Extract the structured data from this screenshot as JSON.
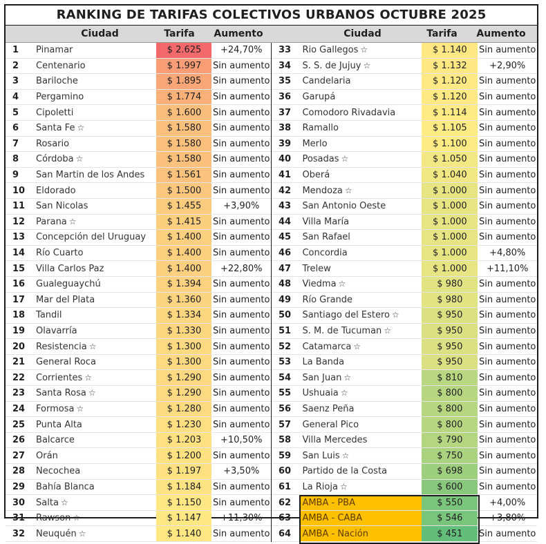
{
  "title": "RANKING DE TARIFAS COLECTIVOS URBANOS OCTUBRE 2025",
  "columns": {
    "rank": "",
    "city": "Ciudad",
    "fare": "Tarifa",
    "increase": "Aumento"
  },
  "rows": [
    {
      "rank": "1",
      "city": "Pinamar",
      "star": false,
      "fare": "$ 2.625",
      "increase": "+24,70%"
    },
    {
      "rank": "2",
      "city": "Centenario",
      "star": false,
      "fare": "$ 1.997",
      "increase": "Sin aumento"
    },
    {
      "rank": "3",
      "city": "Bariloche",
      "star": false,
      "fare": "$ 1.895",
      "increase": "Sin aumento"
    },
    {
      "rank": "4",
      "city": "Pergamino",
      "star": false,
      "fare": "$ 1.774",
      "increase": "Sin aumento"
    },
    {
      "rank": "5",
      "city": "Cipoletti",
      "star": false,
      "fare": "$ 1.600",
      "increase": "Sin aumento"
    },
    {
      "rank": "6",
      "city": "Santa Fe",
      "star": true,
      "fare": "$ 1.580",
      "increase": "Sin aumento"
    },
    {
      "rank": "7",
      "city": "Rosario",
      "star": false,
      "fare": "$ 1.580",
      "increase": "Sin aumento"
    },
    {
      "rank": "8",
      "city": "Córdoba",
      "star": true,
      "fare": "$ 1.580",
      "increase": "Sin aumento"
    },
    {
      "rank": "9",
      "city": "San Martin de los Andes",
      "star": false,
      "fare": "$ 1.561",
      "increase": "Sin aumento"
    },
    {
      "rank": "10",
      "city": "Eldorado",
      "star": false,
      "fare": "$ 1.500",
      "increase": "Sin aumento"
    },
    {
      "rank": "11",
      "city": "San Nicolas",
      "star": false,
      "fare": "$ 1.455",
      "increase": "+3,90%"
    },
    {
      "rank": "12",
      "city": "Parana",
      "star": true,
      "fare": "$ 1.415",
      "increase": "Sin aumento"
    },
    {
      "rank": "13",
      "city": "Concepción del Uruguay",
      "star": false,
      "fare": "$ 1.400",
      "increase": "Sin aumento"
    },
    {
      "rank": "14",
      "city": "Río Cuarto",
      "star": false,
      "fare": "$ 1.400",
      "increase": "Sin aumento"
    },
    {
      "rank": "15",
      "city": "Villa Carlos Paz",
      "star": false,
      "fare": "$ 1.400",
      "increase": "+22,80%"
    },
    {
      "rank": "16",
      "city": "Gualeguaychú",
      "star": false,
      "fare": "$ 1.394",
      "increase": "Sin aumento"
    },
    {
      "rank": "17",
      "city": "Mar del Plata",
      "star": false,
      "fare": "$ 1.360",
      "increase": "Sin aumento"
    },
    {
      "rank": "18",
      "city": "Tandil",
      "star": false,
      "fare": "$ 1.334",
      "increase": "Sin aumento"
    },
    {
      "rank": "19",
      "city": "Olavarría",
      "star": false,
      "fare": "$ 1.330",
      "increase": "Sin aumento"
    },
    {
      "rank": "20",
      "city": "Resistencia",
      "star": true,
      "fare": "$ 1.300",
      "increase": "Sin aumento"
    },
    {
      "rank": "21",
      "city": "General Roca",
      "star": false,
      "fare": "$ 1.300",
      "increase": "Sin aumento"
    },
    {
      "rank": "22",
      "city": "Corrientes",
      "star": true,
      "fare": "$ 1.290",
      "increase": "Sin aumento"
    },
    {
      "rank": "23",
      "city": "Santa Rosa",
      "star": true,
      "fare": "$ 1.290",
      "increase": "Sin aumento"
    },
    {
      "rank": "24",
      "city": "Formosa",
      "star": true,
      "fare": "$ 1.280",
      "increase": "Sin aumento"
    },
    {
      "rank": "25",
      "city": "Punta Alta",
      "star": false,
      "fare": "$ 1.230",
      "increase": "Sin aumento"
    },
    {
      "rank": "26",
      "city": "Balcarce",
      "star": false,
      "fare": "$ 1.203",
      "increase": "+10,50%"
    },
    {
      "rank": "27",
      "city": "Orán",
      "star": false,
      "fare": "$ 1.200",
      "increase": "Sin aumento"
    },
    {
      "rank": "28",
      "city": "Necochea",
      "star": false,
      "fare": "$ 1.197",
      "increase": "+3,50%"
    },
    {
      "rank": "29",
      "city": "Bahía Blanca",
      "star": false,
      "fare": "$ 1.184",
      "increase": "Sin aumento"
    },
    {
      "rank": "30",
      "city": "Salta",
      "star": true,
      "fare": "$ 1.150",
      "increase": "Sin aumento"
    },
    {
      "rank": "31",
      "city": "Rawson",
      "star": true,
      "fare": "$ 1.147",
      "increase": "+11,30%"
    },
    {
      "rank": "32",
      "city": "Neuquén",
      "star": true,
      "fare": "$ 1.140",
      "increase": "Sin aumento"
    },
    {
      "rank": "33",
      "city": "Rio Gallegos",
      "star": true,
      "fare": "$ 1.140",
      "increase": "Sin aumento"
    },
    {
      "rank": "34",
      "city": "S. S. de Jujuy",
      "star": true,
      "fare": "$ 1.132",
      "increase": "+2,90%"
    },
    {
      "rank": "35",
      "city": "Candelaria",
      "star": false,
      "fare": "$ 1.120",
      "increase": "Sin aumento"
    },
    {
      "rank": "36",
      "city": "Garupá",
      "star": false,
      "fare": "$ 1.120",
      "increase": "Sin aumento"
    },
    {
      "rank": "37",
      "city": "Comodoro Rivadavia",
      "star": false,
      "fare": "$ 1.114",
      "increase": "Sin aumento"
    },
    {
      "rank": "38",
      "city": "Ramallo",
      "star": false,
      "fare": "$ 1.105",
      "increase": "Sin aumento"
    },
    {
      "rank": "39",
      "city": "Merlo",
      "star": false,
      "fare": "$ 1.100",
      "increase": "Sin aumento"
    },
    {
      "rank": "40",
      "city": "Posadas",
      "star": true,
      "fare": "$ 1.050",
      "increase": "Sin aumento"
    },
    {
      "rank": "41",
      "city": "Oberá",
      "star": false,
      "fare": "$ 1.040",
      "increase": "Sin aumento"
    },
    {
      "rank": "42",
      "city": "Mendoza",
      "star": true,
      "fare": "$ 1.000",
      "increase": "Sin aumento"
    },
    {
      "rank": "43",
      "city": "San Antonio Oeste",
      "star": false,
      "fare": "$ 1.000",
      "increase": "Sin aumento"
    },
    {
      "rank": "44",
      "city": "Villa María",
      "star": false,
      "fare": "$ 1.000",
      "increase": "Sin aumento"
    },
    {
      "rank": "45",
      "city": "San Rafael",
      "star": false,
      "fare": "$ 1.000",
      "increase": "Sin aumento"
    },
    {
      "rank": "46",
      "city": "Concordia",
      "star": false,
      "fare": "$ 1.000",
      "increase": "+4,80%"
    },
    {
      "rank": "47",
      "city": "Trelew",
      "star": false,
      "fare": "$ 1.000",
      "increase": "+11,10%"
    },
    {
      "rank": "48",
      "city": "Viedma",
      "star": true,
      "fare": "$ 980",
      "increase": "Sin aumento"
    },
    {
      "rank": "49",
      "city": "Río Grande",
      "star": false,
      "fare": "$ 980",
      "increase": "Sin aumento"
    },
    {
      "rank": "50",
      "city": "Santiago del Estero",
      "star": true,
      "fare": "$ 950",
      "increase": "Sin aumento"
    },
    {
      "rank": "51",
      "city": "S. M. de Tucuman",
      "star": true,
      "fare": "$ 950",
      "increase": "Sin aumento"
    },
    {
      "rank": "52",
      "city": "Catamarca",
      "star": true,
      "fare": "$ 950",
      "increase": "Sin aumento"
    },
    {
      "rank": "53",
      "city": "La Banda",
      "star": false,
      "fare": "$ 950",
      "increase": "Sin aumento"
    },
    {
      "rank": "54",
      "city": "San Juan",
      "star": true,
      "fare": "$ 810",
      "increase": "Sin aumento"
    },
    {
      "rank": "55",
      "city": "Ushuaia",
      "star": true,
      "fare": "$ 800",
      "increase": "Sin aumento"
    },
    {
      "rank": "56",
      "city": "Saenz Peña",
      "star": false,
      "fare": "$ 800",
      "increase": "Sin aumento"
    },
    {
      "rank": "57",
      "city": "General Pico",
      "star": false,
      "fare": "$ 800",
      "increase": "Sin aumento"
    },
    {
      "rank": "58",
      "city": "Villa Mercedes",
      "star": false,
      "fare": "$ 790",
      "increase": "Sin aumento"
    },
    {
      "rank": "59",
      "city": "San Luis",
      "star": true,
      "fare": "$ 750",
      "increase": "Sin aumento"
    },
    {
      "rank": "60",
      "city": "Partido de la Costa",
      "star": false,
      "fare": "$ 698",
      "increase": "Sin aumento"
    },
    {
      "rank": "61",
      "city": "La Rioja",
      "star": true,
      "fare": "$ 600",
      "increase": "Sin aumento"
    },
    {
      "rank": "62",
      "city": "AMBA - PBA",
      "star": false,
      "fare": "$ 550",
      "increase": "+4,00%",
      "amba": true
    },
    {
      "rank": "63",
      "city": "AMBA - CABA",
      "star": false,
      "fare": "$ 546",
      "increase": "+3,80%",
      "amba": true
    },
    {
      "rank": "64",
      "city": "AMBA - Nación",
      "star": false,
      "fare": "$ 451",
      "increase": "Sin aumento",
      "amba": true
    }
  ]
}
